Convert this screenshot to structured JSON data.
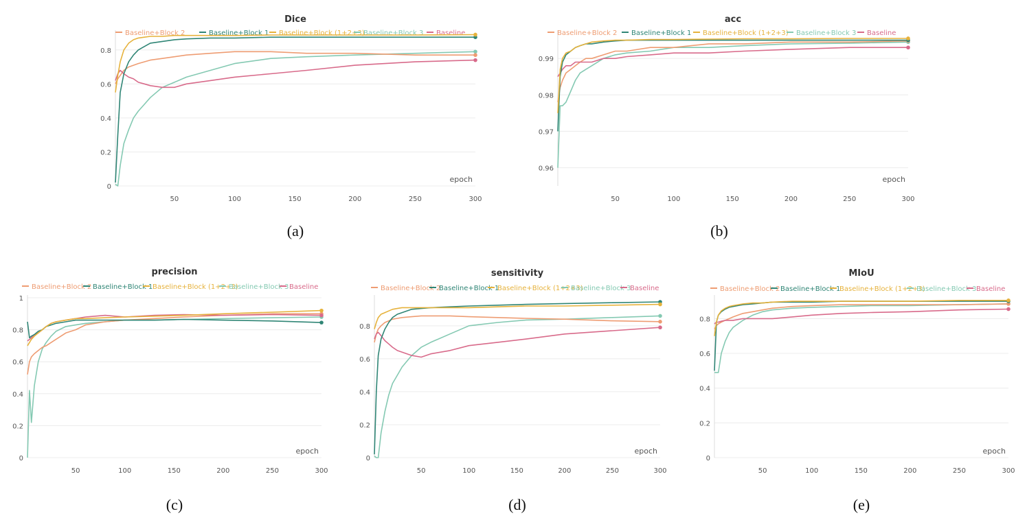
{
  "colors": {
    "Baseline+Block 2": "#ee9c72",
    "Baseline+Block 1": "#2f8575",
    "Baseline+Block (1+2+3)": "#e6b23c",
    "Baseline+Block 3": "#84c9b2",
    "Baseline": "#d86a8a"
  },
  "chart_data": [
    {
      "type": "line",
      "panel": "(a)",
      "title": "Dice",
      "xlabel": "epoch",
      "ylabel": "",
      "xlim": [
        1,
        300
      ],
      "ylim": [
        0,
        0.9
      ],
      "xticks": [
        50,
        100,
        150,
        200,
        250,
        300
      ],
      "yticks": [
        0,
        0.2,
        0.4,
        0.6,
        0.8
      ],
      "ytick_labels": [
        "0",
        "0.2",
        "0.4",
        "0.6",
        "0.8"
      ],
      "x": [
        1,
        3,
        5,
        8,
        12,
        16,
        20,
        25,
        30,
        40,
        50,
        60,
        80,
        100,
        130,
        160,
        200,
        250,
        300
      ],
      "series": [
        {
          "name": "Baseline+Block 2",
          "values": [
            0.6,
            0.63,
            0.65,
            0.68,
            0.7,
            0.71,
            0.72,
            0.73,
            0.74,
            0.75,
            0.76,
            0.77,
            0.78,
            0.79,
            0.79,
            0.78,
            0.78,
            0.77,
            0.77
          ]
        },
        {
          "name": "Baseline+Block 1",
          "values": [
            0.02,
            0.3,
            0.55,
            0.66,
            0.73,
            0.77,
            0.8,
            0.82,
            0.84,
            0.85,
            0.86,
            0.865,
            0.87,
            0.87,
            0.875,
            0.875,
            0.875,
            0.875,
            0.875
          ]
        },
        {
          "name": "Baseline+Block (1+2+3)",
          "values": [
            0.55,
            0.65,
            0.73,
            0.8,
            0.84,
            0.86,
            0.87,
            0.875,
            0.88,
            0.88,
            0.885,
            0.885,
            0.885,
            0.885,
            0.888,
            0.888,
            0.888,
            0.888,
            0.89
          ]
        },
        {
          "name": "Baseline+Block 3",
          "values": [
            0.01,
            0.0,
            0.12,
            0.25,
            0.33,
            0.4,
            0.44,
            0.48,
            0.52,
            0.58,
            0.61,
            0.64,
            0.68,
            0.72,
            0.75,
            0.76,
            0.77,
            0.78,
            0.79
          ]
        },
        {
          "name": "Baseline",
          "values": [
            0.62,
            0.66,
            0.68,
            0.66,
            0.64,
            0.63,
            0.61,
            0.6,
            0.59,
            0.58,
            0.58,
            0.6,
            0.62,
            0.64,
            0.66,
            0.68,
            0.71,
            0.73,
            0.74
          ]
        }
      ]
    },
    {
      "type": "line",
      "panel": "(b)",
      "title": "acc",
      "xlabel": "epoch",
      "ylabel": "",
      "xlim": [
        1,
        300
      ],
      "ylim": [
        0.955,
        0.997
      ],
      "xticks": [
        50,
        100,
        150,
        200,
        250,
        300
      ],
      "yticks": [
        0.96,
        0.97,
        0.98,
        0.99
      ],
      "ytick_labels": [
        "0.96",
        "0.97",
        "0.98",
        "0.99"
      ],
      "x": [
        1,
        3,
        5,
        8,
        12,
        16,
        20,
        25,
        30,
        40,
        50,
        60,
        80,
        100,
        130,
        160,
        200,
        250,
        300
      ],
      "series": [
        {
          "name": "Baseline+Block 2",
          "values": [
            0.978,
            0.982,
            0.984,
            0.986,
            0.987,
            0.988,
            0.989,
            0.99,
            0.99,
            0.991,
            0.992,
            0.992,
            0.993,
            0.993,
            0.994,
            0.994,
            0.9945,
            0.9945,
            0.9948
          ]
        },
        {
          "name": "Baseline+Block 1",
          "values": [
            0.97,
            0.985,
            0.989,
            0.991,
            0.992,
            0.993,
            0.9935,
            0.994,
            0.994,
            0.9945,
            0.9948,
            0.995,
            0.995,
            0.995,
            0.995,
            0.995,
            0.995,
            0.995,
            0.995
          ]
        },
        {
          "name": "Baseline+Block (1+2+3)",
          "values": [
            0.975,
            0.987,
            0.99,
            0.9915,
            0.992,
            0.993,
            0.9935,
            0.994,
            0.9945,
            0.9948,
            0.995,
            0.995,
            0.9952,
            0.9952,
            0.9953,
            0.9954,
            0.9954,
            0.9955,
            0.9955
          ]
        },
        {
          "name": "Baseline+Block 3",
          "values": [
            0.96,
            0.977,
            0.977,
            0.978,
            0.981,
            0.984,
            0.986,
            0.987,
            0.988,
            0.99,
            0.991,
            0.9915,
            0.992,
            0.993,
            0.993,
            0.9935,
            0.994,
            0.9942,
            0.9945
          ]
        },
        {
          "name": "Baseline",
          "values": [
            0.985,
            0.986,
            0.987,
            0.988,
            0.988,
            0.989,
            0.989,
            0.989,
            0.989,
            0.99,
            0.99,
            0.9905,
            0.991,
            0.9915,
            0.9915,
            0.992,
            0.9925,
            0.993,
            0.993
          ]
        }
      ]
    },
    {
      "type": "line",
      "panel": "(c)",
      "title": "precision",
      "xlabel": "epoch",
      "ylabel": "",
      "xlim": [
        1,
        300
      ],
      "ylim": [
        0,
        1
      ],
      "xticks": [
        50,
        100,
        150,
        200,
        250,
        300
      ],
      "yticks": [
        0,
        0.2,
        0.4,
        0.6,
        0.8,
        1
      ],
      "ytick_labels": [
        "0",
        "0.2",
        "0.4",
        "0.6",
        "0.8",
        "1"
      ],
      "x": [
        1,
        3,
        5,
        8,
        12,
        16,
        20,
        25,
        30,
        40,
        50,
        60,
        80,
        100,
        130,
        160,
        200,
        250,
        300
      ],
      "series": [
        {
          "name": "Baseline+Block 2",
          "values": [
            0.52,
            0.6,
            0.63,
            0.65,
            0.67,
            0.69,
            0.7,
            0.72,
            0.74,
            0.78,
            0.8,
            0.83,
            0.85,
            0.86,
            0.87,
            0.88,
            0.89,
            0.9,
            0.9
          ]
        },
        {
          "name": "Baseline+Block 1",
          "values": [
            0.85,
            0.75,
            0.76,
            0.77,
            0.79,
            0.8,
            0.82,
            0.83,
            0.84,
            0.85,
            0.86,
            0.86,
            0.86,
            0.86,
            0.86,
            0.865,
            0.86,
            0.855,
            0.845
          ]
        },
        {
          "name": "Baseline+Block (1+2+3)",
          "values": [
            0.7,
            0.72,
            0.74,
            0.76,
            0.78,
            0.8,
            0.82,
            0.84,
            0.85,
            0.86,
            0.87,
            0.87,
            0.875,
            0.88,
            0.885,
            0.89,
            0.9,
            0.91,
            0.92
          ]
        },
        {
          "name": "Baseline+Block 3",
          "values": [
            0.0,
            0.42,
            0.22,
            0.45,
            0.6,
            0.68,
            0.72,
            0.76,
            0.79,
            0.82,
            0.83,
            0.84,
            0.85,
            0.86,
            0.86,
            0.865,
            0.87,
            0.875,
            0.88
          ]
        },
        {
          "name": "Baseline",
          "values": [
            0.73,
            0.74,
            0.75,
            0.77,
            0.78,
            0.8,
            0.82,
            0.84,
            0.85,
            0.86,
            0.87,
            0.88,
            0.89,
            0.88,
            0.89,
            0.895,
            0.89,
            0.895,
            0.89
          ]
        }
      ]
    },
    {
      "type": "line",
      "panel": "(d)",
      "title": "sensitivity",
      "xlabel": "epoch",
      "ylabel": "",
      "xlim": [
        1,
        300
      ],
      "ylim": [
        0,
        0.97
      ],
      "xticks": [
        50,
        100,
        150,
        200,
        250,
        300
      ],
      "yticks": [
        0,
        0.2,
        0.4,
        0.6,
        0.8
      ],
      "ytick_labels": [
        "0",
        "0.2",
        "0.4",
        "0.6",
        "0.8"
      ],
      "x": [
        1,
        3,
        5,
        8,
        12,
        16,
        20,
        25,
        30,
        40,
        50,
        60,
        80,
        100,
        130,
        160,
        200,
        250,
        300
      ],
      "series": [
        {
          "name": "Baseline+Block 2",
          "values": [
            0.7,
            0.75,
            0.78,
            0.8,
            0.82,
            0.83,
            0.84,
            0.845,
            0.85,
            0.855,
            0.86,
            0.86,
            0.86,
            0.855,
            0.85,
            0.845,
            0.84,
            0.83,
            0.825
          ]
        },
        {
          "name": "Baseline+Block 1",
          "values": [
            0.02,
            0.4,
            0.62,
            0.72,
            0.78,
            0.82,
            0.85,
            0.87,
            0.88,
            0.9,
            0.905,
            0.91,
            0.915,
            0.92,
            0.925,
            0.93,
            0.935,
            0.94,
            0.945
          ]
        },
        {
          "name": "Baseline+Block (1+2+3)",
          "values": [
            0.78,
            0.82,
            0.85,
            0.87,
            0.88,
            0.89,
            0.9,
            0.905,
            0.91,
            0.91,
            0.91,
            0.91,
            0.91,
            0.91,
            0.915,
            0.92,
            0.92,
            0.925,
            0.93
          ]
        },
        {
          "name": "Baseline+Block 3",
          "values": [
            0.01,
            0.0,
            0.0,
            0.15,
            0.28,
            0.38,
            0.45,
            0.5,
            0.55,
            0.62,
            0.67,
            0.7,
            0.75,
            0.8,
            0.82,
            0.835,
            0.84,
            0.85,
            0.86
          ]
        },
        {
          "name": "Baseline",
          "values": [
            0.72,
            0.75,
            0.76,
            0.74,
            0.71,
            0.69,
            0.67,
            0.65,
            0.64,
            0.62,
            0.61,
            0.63,
            0.65,
            0.68,
            0.7,
            0.72,
            0.75,
            0.77,
            0.79
          ]
        }
      ]
    },
    {
      "type": "line",
      "panel": "(e)",
      "title": "MIoU",
      "xlabel": "epoch",
      "ylabel": "",
      "xlim": [
        1,
        300
      ],
      "ylim": [
        0,
        0.92
      ],
      "xticks": [
        50,
        100,
        150,
        200,
        250,
        300
      ],
      "yticks": [
        0,
        0.2,
        0.4,
        0.6,
        0.8
      ],
      "ytick_labels": [
        "0",
        "0.2",
        "0.4",
        "0.6",
        "0.8"
      ],
      "x": [
        1,
        3,
        5,
        8,
        12,
        16,
        20,
        25,
        30,
        40,
        50,
        60,
        80,
        100,
        130,
        160,
        200,
        250,
        300
      ],
      "series": [
        {
          "name": "Baseline+Block 2",
          "values": [
            0.74,
            0.76,
            0.77,
            0.78,
            0.79,
            0.8,
            0.81,
            0.82,
            0.83,
            0.84,
            0.85,
            0.86,
            0.87,
            0.875,
            0.88,
            0.88,
            0.88,
            0.88,
            0.885
          ]
        },
        {
          "name": "Baseline+Block 1",
          "values": [
            0.5,
            0.78,
            0.82,
            0.84,
            0.855,
            0.865,
            0.87,
            0.875,
            0.88,
            0.885,
            0.89,
            0.895,
            0.895,
            0.895,
            0.9,
            0.9,
            0.9,
            0.9,
            0.9
          ]
        },
        {
          "name": "Baseline+Block (1+2+3)",
          "values": [
            0.7,
            0.78,
            0.82,
            0.845,
            0.86,
            0.87,
            0.875,
            0.88,
            0.885,
            0.89,
            0.89,
            0.895,
            0.9,
            0.9,
            0.9,
            0.9,
            0.9,
            0.905,
            0.905
          ]
        },
        {
          "name": "Baseline+Block 3",
          "values": [
            0.49,
            0.49,
            0.49,
            0.6,
            0.67,
            0.72,
            0.75,
            0.77,
            0.79,
            0.82,
            0.84,
            0.85,
            0.86,
            0.865,
            0.87,
            0.875,
            0.875,
            0.88,
            0.885
          ]
        },
        {
          "name": "Baseline",
          "values": [
            0.77,
            0.78,
            0.78,
            0.785,
            0.79,
            0.79,
            0.79,
            0.795,
            0.8,
            0.8,
            0.8,
            0.8,
            0.81,
            0.82,
            0.83,
            0.835,
            0.84,
            0.85,
            0.855
          ]
        }
      ]
    }
  ]
}
